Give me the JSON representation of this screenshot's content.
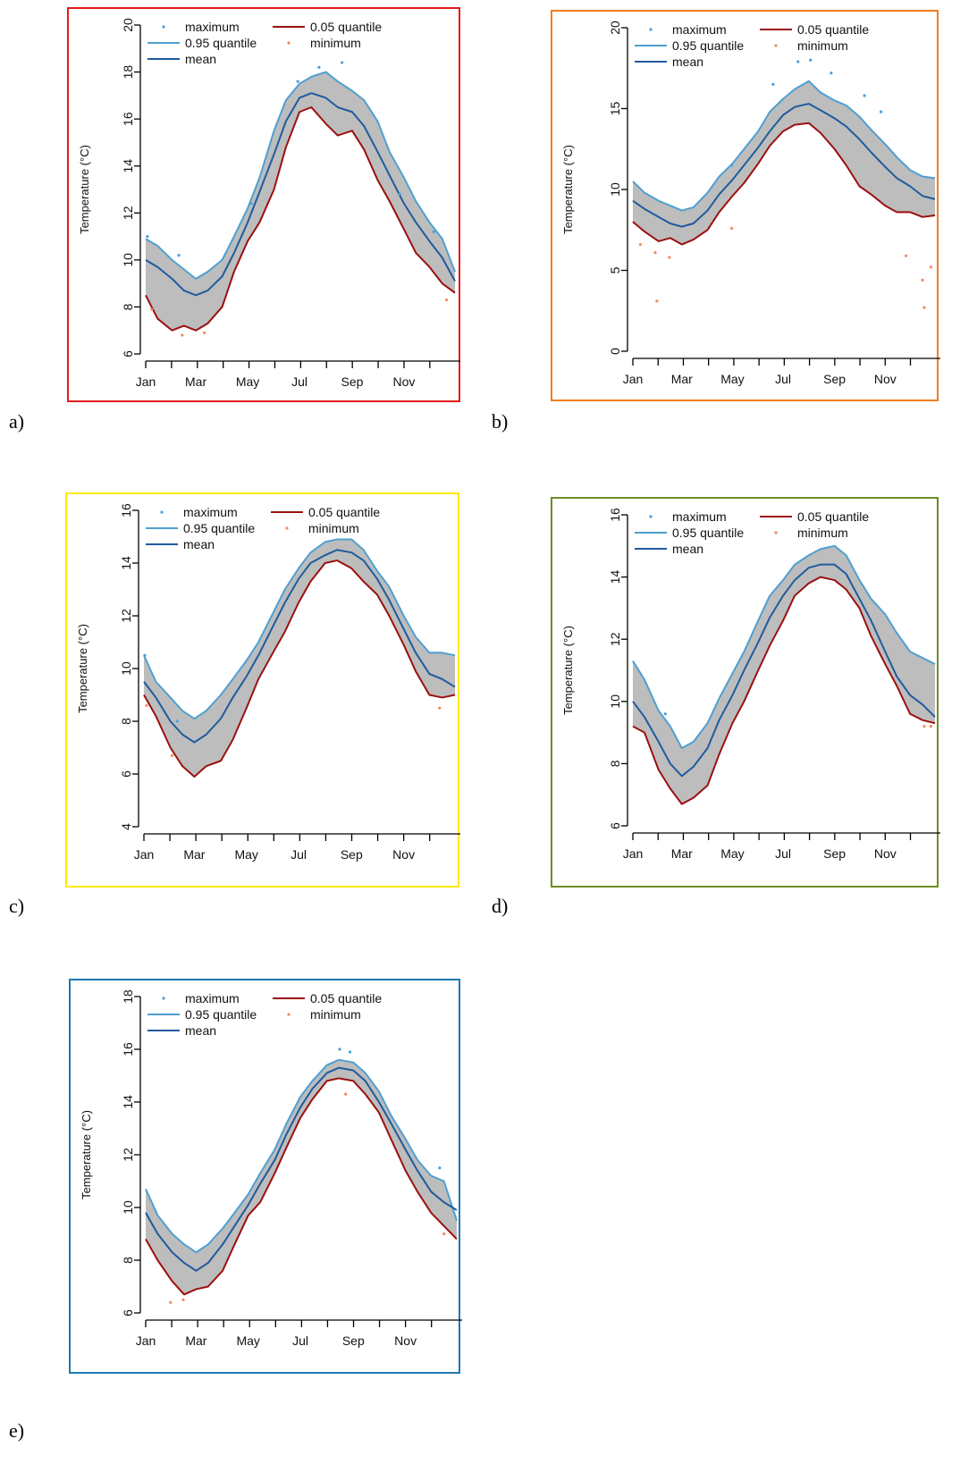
{
  "colors": {
    "maximum": "#4a9fd8",
    "q95": "#4f9fd1",
    "mean": "#1f5b9e",
    "q05": "#9b1010",
    "minimum": "#f08a60",
    "band": "#bdbdbd"
  },
  "chart_data": [
    {
      "id": "a",
      "caption": "a)",
      "border_color": "#e31a1c",
      "type": "area",
      "ylabel": "Temperature (°C)",
      "ylim": [
        6,
        20
      ],
      "yticks": [
        6,
        8,
        10,
        12,
        14,
        16,
        18,
        20
      ],
      "xticks": [
        "Jan",
        "Mar",
        "May",
        "Jul",
        "Sep",
        "Nov"
      ],
      "legend": [
        "maximum",
        "0.95 quantile",
        "mean",
        "0.05 quantile",
        "minimum"
      ],
      "x": [
        1,
        15,
        32,
        46,
        60,
        74,
        91,
        105,
        121,
        135,
        152,
        166,
        182,
        196,
        213,
        227,
        244,
        258,
        274,
        288,
        305,
        319,
        335,
        350,
        365
      ],
      "q95": [
        10.9,
        10.6,
        10.0,
        9.6,
        9.2,
        9.5,
        10.0,
        11.0,
        12.2,
        13.5,
        15.5,
        16.8,
        17.5,
        17.8,
        18.0,
        17.6,
        17.2,
        16.8,
        15.9,
        14.6,
        13.5,
        12.5,
        11.6,
        10.9,
        9.5
      ],
      "mean": [
        10.0,
        9.7,
        9.2,
        8.7,
        8.5,
        8.7,
        9.3,
        10.3,
        11.6,
        12.9,
        14.5,
        15.9,
        16.9,
        17.1,
        16.9,
        16.5,
        16.3,
        15.7,
        14.6,
        13.6,
        12.4,
        11.6,
        10.8,
        10.1,
        9.1
      ],
      "q05": [
        8.5,
        7.5,
        7.0,
        7.2,
        7.0,
        7.3,
        8.0,
        9.5,
        10.8,
        11.6,
        13.0,
        14.8,
        16.3,
        16.5,
        15.8,
        15.3,
        15.5,
        14.7,
        13.4,
        12.5,
        11.3,
        10.3,
        9.7,
        9.0,
        8.6
      ],
      "maximum": [
        [
          3,
          11.0
        ],
        [
          40,
          10.2
        ],
        [
          125,
          12.4
        ],
        [
          180,
          17.6
        ],
        [
          205,
          18.2
        ],
        [
          232,
          18.4
        ],
        [
          300,
          12.8
        ],
        [
          340,
          11.2
        ]
      ],
      "minimum": [
        [
          8,
          7.9
        ],
        [
          44,
          6.8
        ],
        [
          70,
          6.9
        ],
        [
          355,
          8.3
        ]
      ]
    },
    {
      "id": "b",
      "caption": "b)",
      "border_color": "#f07d1f",
      "type": "area",
      "ylabel": "Temperature (°C)",
      "ylim": [
        0,
        20
      ],
      "yticks": [
        0,
        5,
        10,
        15,
        20
      ],
      "xticks": [
        "Jan",
        "Mar",
        "May",
        "Jul",
        "Sep",
        "Nov"
      ],
      "legend": [
        "maximum",
        "0.95 quantile",
        "mean",
        "0.05 quantile",
        "minimum"
      ],
      "x": [
        1,
        15,
        32,
        46,
        60,
        74,
        91,
        105,
        121,
        135,
        152,
        166,
        182,
        196,
        213,
        227,
        244,
        258,
        274,
        288,
        305,
        319,
        335,
        350,
        365
      ],
      "q95": [
        10.5,
        9.8,
        9.3,
        9.0,
        8.7,
        8.9,
        9.8,
        10.8,
        11.6,
        12.5,
        13.6,
        14.8,
        15.6,
        16.2,
        16.7,
        16.0,
        15.5,
        15.2,
        14.5,
        13.7,
        12.8,
        12.0,
        11.2,
        10.8,
        10.7
      ],
      "mean": [
        9.3,
        8.8,
        8.3,
        7.9,
        7.7,
        7.9,
        8.7,
        9.7,
        10.6,
        11.5,
        12.6,
        13.6,
        14.6,
        15.1,
        15.3,
        14.9,
        14.4,
        13.9,
        13.1,
        12.3,
        11.4,
        10.7,
        10.2,
        9.6,
        9.4
      ],
      "q05": [
        8.0,
        7.4,
        6.8,
        7.0,
        6.6,
        6.9,
        7.5,
        8.6,
        9.6,
        10.4,
        11.6,
        12.7,
        13.6,
        14.0,
        14.1,
        13.5,
        12.5,
        11.5,
        10.2,
        9.7,
        9.0,
        8.6,
        8.6,
        8.3,
        8.4
      ],
      "maximum": [
        [
          120,
          11.5
        ],
        [
          170,
          16.5
        ],
        [
          200,
          17.9
        ],
        [
          215,
          18.0
        ],
        [
          240,
          17.2
        ],
        [
          280,
          15.8
        ],
        [
          300,
          14.8
        ]
      ],
      "minimum": [
        [
          10,
          6.6
        ],
        [
          28,
          6.1
        ],
        [
          30,
          3.1
        ],
        [
          45,
          5.8
        ],
        [
          120,
          7.6
        ],
        [
          330,
          5.9
        ],
        [
          350,
          4.4
        ],
        [
          352,
          2.7
        ],
        [
          360,
          5.2
        ]
      ]
    },
    {
      "id": "c",
      "caption": "c)",
      "border_color": "#ffea00",
      "type": "area",
      "ylabel": "Temperature (°C)",
      "ylim": [
        4,
        16
      ],
      "yticks": [
        4,
        6,
        8,
        10,
        12,
        14,
        16
      ],
      "xticks": [
        "Jan",
        "Mar",
        "May",
        "Jul",
        "Sep",
        "Nov"
      ],
      "legend": [
        "maximum",
        "0.95 quantile",
        "mean",
        "0.05 quantile",
        "minimum"
      ],
      "x": [
        1,
        15,
        32,
        46,
        60,
        74,
        91,
        105,
        121,
        135,
        152,
        166,
        182,
        196,
        213,
        227,
        244,
        258,
        274,
        288,
        305,
        319,
        335,
        350,
        365
      ],
      "q95": [
        10.5,
        9.5,
        8.9,
        8.4,
        8.1,
        8.4,
        9.0,
        9.6,
        10.3,
        11.0,
        12.1,
        13.0,
        13.8,
        14.4,
        14.8,
        14.9,
        14.9,
        14.5,
        13.7,
        13.1,
        12.0,
        11.2,
        10.6,
        10.6,
        10.5
      ],
      "mean": [
        9.5,
        8.9,
        8.0,
        7.5,
        7.2,
        7.5,
        8.1,
        8.9,
        9.7,
        10.5,
        11.6,
        12.5,
        13.4,
        14.0,
        14.3,
        14.5,
        14.4,
        14.1,
        13.4,
        12.6,
        11.5,
        10.6,
        9.8,
        9.6,
        9.3
      ],
      "q05": [
        9.0,
        8.2,
        7.0,
        6.3,
        5.9,
        6.3,
        6.5,
        7.3,
        8.5,
        9.6,
        10.6,
        11.4,
        12.5,
        13.3,
        14.0,
        14.1,
        13.8,
        13.3,
        12.8,
        12.0,
        10.9,
        9.9,
        9.0,
        8.9,
        9.0
      ],
      "maximum": [
        [
          2,
          10.5
        ],
        [
          40,
          8.0
        ]
      ],
      "minimum": [
        [
          4,
          8.6
        ],
        [
          34,
          6.7
        ],
        [
          347,
          8.5
        ]
      ]
    },
    {
      "id": "d",
      "caption": "d)",
      "border_color": "#6b8e23",
      "type": "area",
      "ylabel": "Temperature (°C)",
      "ylim": [
        6,
        16
      ],
      "yticks": [
        6,
        8,
        10,
        12,
        14,
        16
      ],
      "xticks": [
        "Jan",
        "Mar",
        "May",
        "Jul",
        "Sep",
        "Nov"
      ],
      "legend": [
        "maximum",
        "0.95 quantile",
        "mean",
        "0.05 quantile",
        "minimum"
      ],
      "x": [
        1,
        15,
        32,
        46,
        60,
        74,
        91,
        105,
        121,
        135,
        152,
        166,
        182,
        196,
        213,
        227,
        244,
        258,
        274,
        288,
        305,
        319,
        335,
        350,
        365
      ],
      "q95": [
        11.3,
        10.7,
        9.7,
        9.2,
        8.5,
        8.7,
        9.3,
        10.1,
        10.9,
        11.6,
        12.6,
        13.4,
        13.9,
        14.4,
        14.7,
        14.9,
        15.0,
        14.7,
        13.9,
        13.3,
        12.8,
        12.2,
        11.6,
        11.4,
        11.2
      ],
      "mean": [
        10.0,
        9.5,
        8.7,
        8.0,
        7.6,
        7.9,
        8.5,
        9.4,
        10.2,
        11.0,
        11.9,
        12.7,
        13.4,
        13.9,
        14.3,
        14.4,
        14.4,
        14.1,
        13.3,
        12.6,
        11.6,
        10.8,
        10.2,
        9.9,
        9.5
      ],
      "q05": [
        9.2,
        9.0,
        7.8,
        7.2,
        6.7,
        6.9,
        7.3,
        8.3,
        9.3,
        10.0,
        11.0,
        11.8,
        12.6,
        13.4,
        13.8,
        14.0,
        13.9,
        13.6,
        13.0,
        12.1,
        11.2,
        10.5,
        9.6,
        9.4,
        9.3
      ],
      "maximum": [
        [
          40,
          9.6
        ]
      ],
      "minimum": [
        [
          352,
          9.2
        ],
        [
          360,
          9.2
        ]
      ]
    },
    {
      "id": "e",
      "caption": "e)",
      "border_color": "#1f78b4",
      "type": "area",
      "ylabel": "Temperature (°C)",
      "ylim": [
        6,
        18
      ],
      "yticks": [
        6,
        8,
        10,
        12,
        14,
        16,
        18
      ],
      "xticks": [
        "Jan",
        "Mar",
        "May",
        "Jul",
        "Sep",
        "Nov"
      ],
      "legend": [
        "maximum",
        "0.95 quantile",
        "mean",
        "0.05 quantile",
        "minimum"
      ],
      "x": [
        1,
        15,
        32,
        46,
        60,
        74,
        91,
        105,
        121,
        135,
        152,
        166,
        182,
        196,
        213,
        227,
        244,
        258,
        274,
        288,
        305,
        319,
        335,
        350,
        365
      ],
      "q95": [
        10.7,
        9.7,
        9.0,
        8.6,
        8.3,
        8.6,
        9.2,
        9.8,
        10.5,
        11.3,
        12.2,
        13.2,
        14.2,
        14.8,
        15.4,
        15.6,
        15.5,
        15.1,
        14.4,
        13.5,
        12.6,
        11.8,
        11.2,
        11.0,
        9.5
      ],
      "mean": [
        9.8,
        9.0,
        8.3,
        7.9,
        7.6,
        7.9,
        8.6,
        9.3,
        10.1,
        10.9,
        11.8,
        12.8,
        13.8,
        14.5,
        15.1,
        15.3,
        15.2,
        14.8,
        14.0,
        13.2,
        12.2,
        11.4,
        10.6,
        10.2,
        9.9
      ],
      "q05": [
        8.8,
        8.0,
        7.2,
        6.7,
        6.9,
        7.0,
        7.6,
        8.6,
        9.7,
        10.2,
        11.3,
        12.3,
        13.4,
        14.1,
        14.8,
        14.9,
        14.8,
        14.3,
        13.6,
        12.6,
        11.4,
        10.6,
        9.8,
        9.3,
        8.8
      ],
      "maximum": [
        [
          228,
          16.0
        ],
        [
          240,
          15.9
        ],
        [
          345,
          11.5
        ]
      ],
      "minimum": [
        [
          30,
          6.4
        ],
        [
          45,
          6.5
        ],
        [
          235,
          14.3
        ],
        [
          350,
          9.0
        ]
      ]
    }
  ]
}
